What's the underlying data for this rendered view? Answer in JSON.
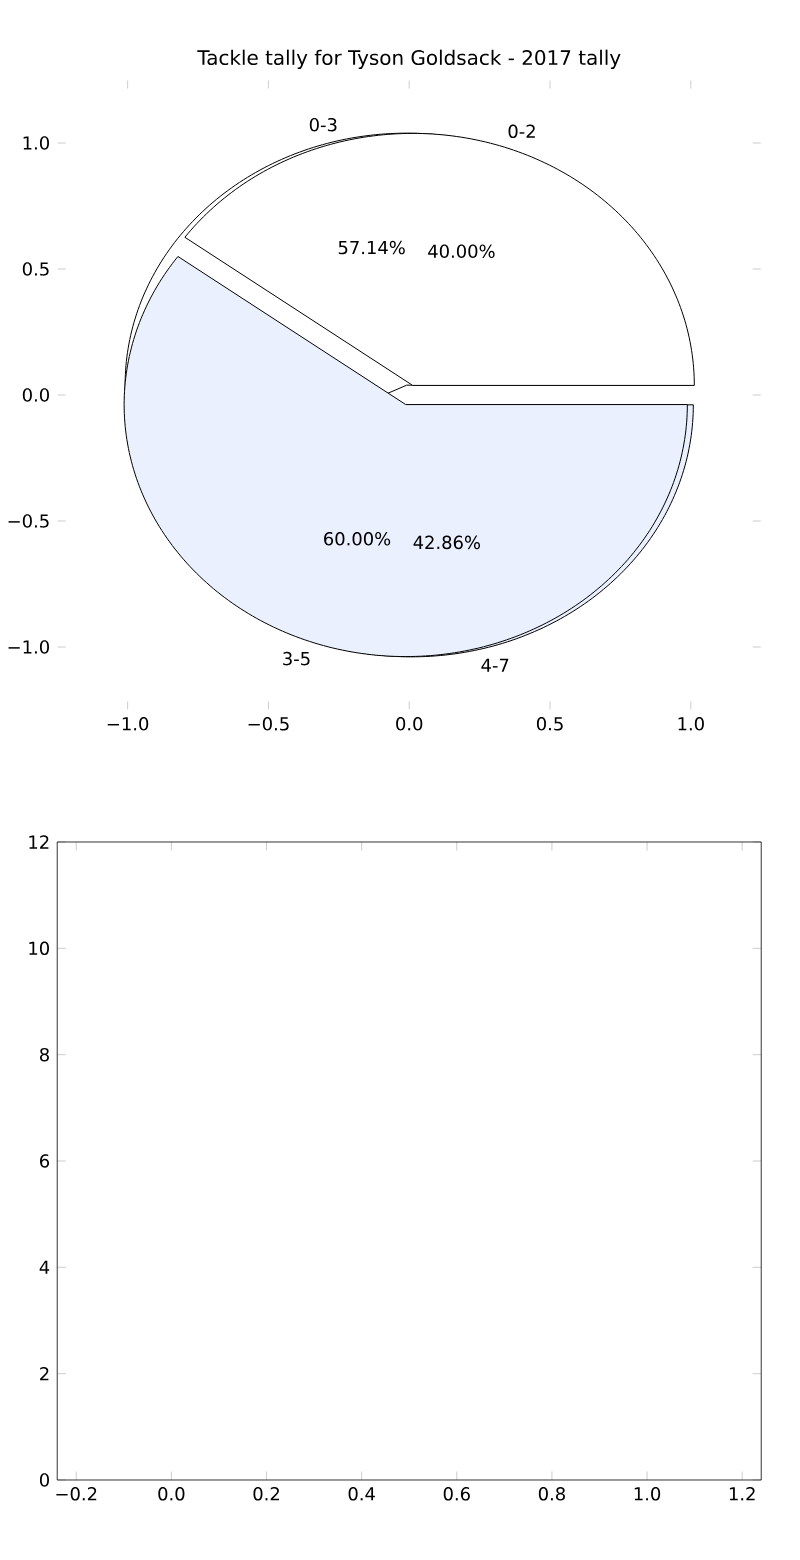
{
  "chart_data": [
    {
      "type": "pie",
      "title": "Tackle tally for Tyson Goldsack - 2017 tally",
      "categories": [
        "0-2",
        "3-5"
      ],
      "values": [
        40,
        60
      ],
      "value_labels": [
        "40.00%",
        "60.00%"
      ],
      "colors": [
        "#ffffff",
        "#eaf0fd"
      ]
    },
    {
      "type": "pie",
      "categories": [
        "0-3",
        "4-7"
      ],
      "values": [
        57.14,
        42.86
      ],
      "value_labels": [
        "57.14%",
        "42.86%"
      ],
      "colors": [
        "#ffffff",
        "#eaf0fd"
      ]
    },
    {
      "type": "scatter",
      "xlim": [
        -1.25,
        1.25
      ],
      "ylim": [
        -1.25,
        1.25
      ],
      "xticks": [
        {
          "value": -1,
          "label": "−1.0"
        },
        {
          "value": -0.5,
          "label": "−0.5"
        },
        {
          "value": 0,
          "label": "0.0"
        },
        {
          "value": 0.5,
          "label": "0.5"
        },
        {
          "value": 1,
          "label": "1.0"
        }
      ],
      "yticks": [
        {
          "value": -1,
          "label": "−1.0"
        },
        {
          "value": -0.5,
          "label": "−0.5"
        },
        {
          "value": 0,
          "label": "0.0"
        },
        {
          "value": 0.5,
          "label": "0.5"
        },
        {
          "value": 1,
          "label": "1.0"
        }
      ]
    },
    {
      "type": "scatter",
      "xlim": [
        -0.24,
        1.24
      ],
      "ylim": [
        0,
        12
      ],
      "xticks": [
        {
          "value": -0.2,
          "label": "−0.2"
        },
        {
          "value": 0,
          "label": "0.0"
        },
        {
          "value": 0.2,
          "label": "0.2"
        },
        {
          "value": 0.4,
          "label": "0.4"
        },
        {
          "value": 0.6,
          "label": "0.6"
        },
        {
          "value": 0.8,
          "label": "0.8"
        },
        {
          "value": 1,
          "label": "1.0"
        },
        {
          "value": 1.2,
          "label": "1.2"
        }
      ],
      "yticks": [
        0,
        2,
        4,
        6,
        8,
        10,
        12
      ]
    }
  ]
}
